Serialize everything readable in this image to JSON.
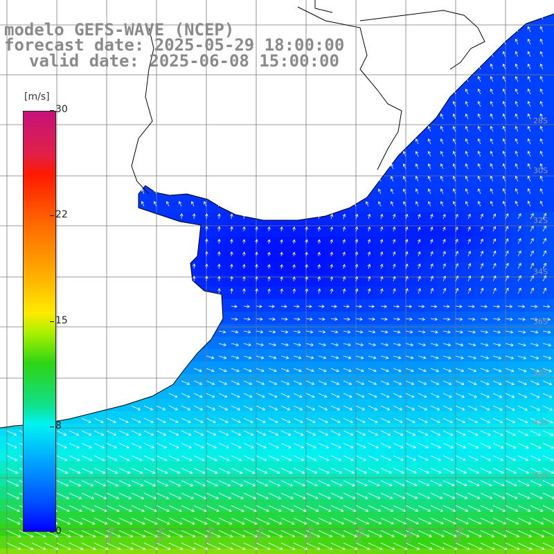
{
  "title": {
    "line1": "modelo GEFS-WAVE (NCEP)",
    "line2": "forecast date: 2025-05-29 18:00:00",
    "line3": "valid date: 2025-06-08 15:00:00"
  },
  "colorbar": {
    "unit": "[m/s]",
    "ticks": [
      {
        "label": "30",
        "value": 30
      },
      {
        "label": "22",
        "value": 22
      },
      {
        "label": "15",
        "value": 15
      },
      {
        "label": "8",
        "value": 8
      },
      {
        "label": "0",
        "value": 0
      }
    ],
    "range": [
      0,
      30
    ],
    "colors": [
      "#0000ff",
      "#00a8ff",
      "#00f2f2",
      "#10e08a",
      "#2ed414",
      "#ffea00",
      "#ffa800",
      "#ff1a00",
      "#c6127a"
    ]
  },
  "map": {
    "lon_range": [
      -72,
      -50
    ],
    "lat_range": [
      -42,
      -22
    ],
    "grid_step_deg": 2,
    "lon_labels": [
      "64W",
      "62W",
      "60W",
      "58W",
      "56W",
      "54W",
      "52W",
      "50W"
    ],
    "lat_labels": [
      "28S",
      "30S",
      "32S",
      "34S",
      "36S",
      "38S",
      "40S",
      "41S"
    ],
    "land_color": "#ffffff",
    "coast_color": "#000000"
  }
}
